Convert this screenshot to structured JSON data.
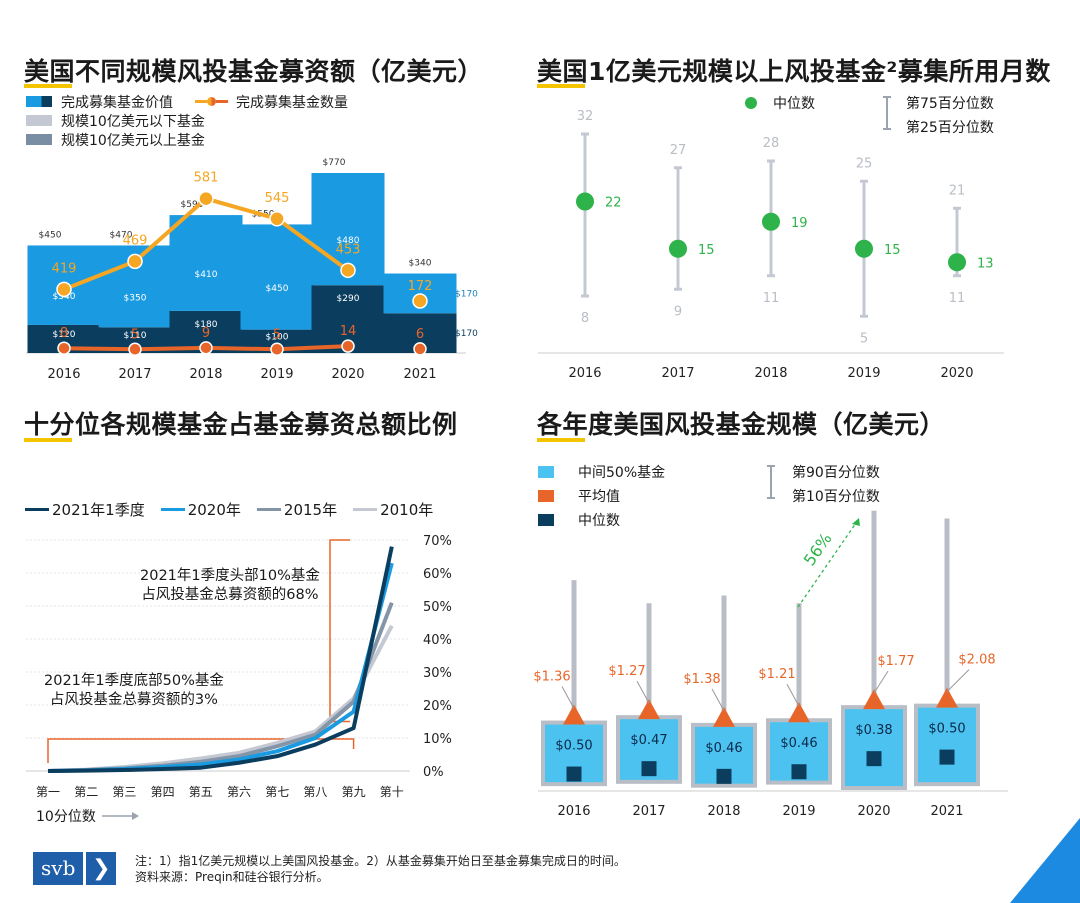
{
  "charts": {
    "c1": {
      "title": "美国不同规模风投基金募资额（亿美元）",
      "legend": {
        "value": "完成募集基金价值",
        "count": "完成募集基金数量",
        "small": "规模10亿美元以下基金",
        "large": "规模10亿美元以上基金"
      }
    },
    "c2": {
      "title": "美国1亿美元规模以上风投基金²募集所用月数",
      "legend": {
        "median": "中位数",
        "p75": "第75百分位数",
        "p25": "第25百分位数"
      }
    },
    "c3": {
      "title": "十分位各规模基金占基金募资总额比例",
      "ann_top": [
        "2021年1季度头部10%基金",
        "占风投基金总募资额的68%"
      ],
      "ann_bottom": [
        "2021年1季度底部50%基金",
        "占风投基金总募资额的3%"
      ],
      "xaxis_title": "10分位数"
    },
    "c4": {
      "title": "各年度美国风投基金规模（亿美元）",
      "legend": {
        "mid50": "中间50%基金",
        "mean": "平均值",
        "median": "中位数",
        "p90": "第90百分位数",
        "p10": "第10百分位数"
      },
      "growth_label": "56%"
    }
  },
  "chart_data": [
    {
      "type": "bar",
      "title": "美国不同规模风投基金募资额（亿美元）",
      "categories": [
        "2016",
        "2017",
        "2018",
        "2019",
        "2020",
        "2021"
      ],
      "series": [
        {
          "name": "规模10亿美元以上基金",
          "values": [
            120,
            110,
            180,
            100,
            290,
            170
          ],
          "labels": [
            "$120",
            "$110",
            "$180",
            "$100",
            "$290",
            "$170"
          ]
        },
        {
          "name": "规模10亿美元以下基金",
          "values": [
            340,
            350,
            410,
            450,
            480,
            170
          ],
          "labels": [
            "$340",
            "$350",
            "$410",
            "$450",
            "$480",
            "$170"
          ]
        },
        {
          "name": "完成募集基金价值",
          "values": [
            450,
            470,
            590,
            550,
            770,
            340
          ],
          "labels": [
            "$450",
            "$470",
            "$590",
            "$550",
            "$770",
            "$340"
          ]
        },
        {
          "name": "完成募集基金数量(10亿以下)",
          "values": [
            419,
            469,
            581,
            545,
            453,
            172
          ]
        },
        {
          "name": "完成募集基金数量(10亿以上)",
          "values": [
            8,
            5,
            9,
            5,
            14,
            6
          ]
        }
      ]
    },
    {
      "type": "scatter",
      "title": "美国1亿美元规模以上风投基金²募集所用月数",
      "categories": [
        "2016",
        "2017",
        "2018",
        "2019",
        "2020"
      ],
      "median": [
        22,
        15,
        19,
        15,
        13
      ],
      "p75": [
        32,
        27,
        28,
        25,
        21
      ],
      "p25": [
        8,
        9,
        11,
        5,
        11
      ],
      "ylim": [
        0,
        35
      ]
    },
    {
      "type": "line",
      "title": "十分位各规模基金占基金募资总额比例",
      "categories": [
        "第一",
        "第二",
        "第三",
        "第四",
        "第五",
        "第六",
        "第七",
        "第八",
        "第九",
        "第十"
      ],
      "yticks": [
        "0%",
        "10%",
        "20%",
        "30%",
        "40%",
        "50%",
        "60%",
        "70%"
      ],
      "ylim": [
        0,
        70
      ],
      "series": [
        {
          "name": "2021年1季度",
          "color": "#0b3d5e",
          "values": [
            0,
            0.1,
            0.3,
            0.6,
            1.0,
            2.5,
            4.5,
            8,
            13,
            68
          ]
        },
        {
          "name": "2020年",
          "color": "#1a9ae0",
          "values": [
            0,
            0.2,
            0.6,
            1.2,
            2.0,
            3.5,
            6,
            10,
            18,
            63
          ]
        },
        {
          "name": "2015年",
          "color": "#8495a8",
          "values": [
            0,
            0.3,
            0.8,
            1.6,
            2.8,
            4.5,
            7.5,
            11,
            21,
            51
          ]
        },
        {
          "name": "2010年",
          "color": "#c3c8d2",
          "values": [
            0,
            0.4,
            1.2,
            2.3,
            3.8,
            5.5,
            8.5,
            12,
            22,
            44
          ]
        }
      ]
    },
    {
      "type": "bar",
      "title": "各年度美国风投基金规模（亿美元）",
      "categories": [
        "2016",
        "2017",
        "2018",
        "2019",
        "2020",
        "2021"
      ],
      "median_labels": [
        "$0.50",
        "$0.47",
        "$0.46",
        "$0.46",
        "$0.38",
        "$0.50"
      ],
      "mean_labels": [
        "$1.36",
        "$1.27",
        "$1.38",
        "$1.21",
        "$1.77",
        "$2.08"
      ],
      "mean": [
        1.36,
        1.27,
        1.38,
        1.21,
        1.77,
        2.08
      ],
      "median": [
        0.5,
        0.47,
        0.46,
        0.46,
        0.38,
        0.5
      ],
      "box_top": [
        0.85,
        0.92,
        0.82,
        0.88,
        1.05,
        1.07
      ],
      "box_bottom": [
        0.05,
        0.08,
        0.03,
        0.07,
        0.0,
        0.05
      ],
      "p90": [
        2.7,
        2.4,
        2.5,
        2.4,
        3.6,
        3.5
      ],
      "p10": [
        0.05,
        0.07,
        0.03,
        0.06,
        0.0,
        0.04
      ]
    }
  ],
  "footer": {
    "note": "注：1）指1亿美元规模以上美国风投基金。2）从基金募集开始日至基金募集完成日的时间。",
    "source": "资料来源：Preqin和硅谷银行分析。"
  },
  "brand": {
    "logo": "svb",
    "arrow": "❯"
  },
  "colors": {
    "dark": "#0b3d5e",
    "blue": "#1a9ae0",
    "orange": "#f5a623",
    "red": "#e8652a",
    "green": "#2db34a",
    "cyan": "#4cc2f0",
    "yellow": "#f4c400"
  }
}
